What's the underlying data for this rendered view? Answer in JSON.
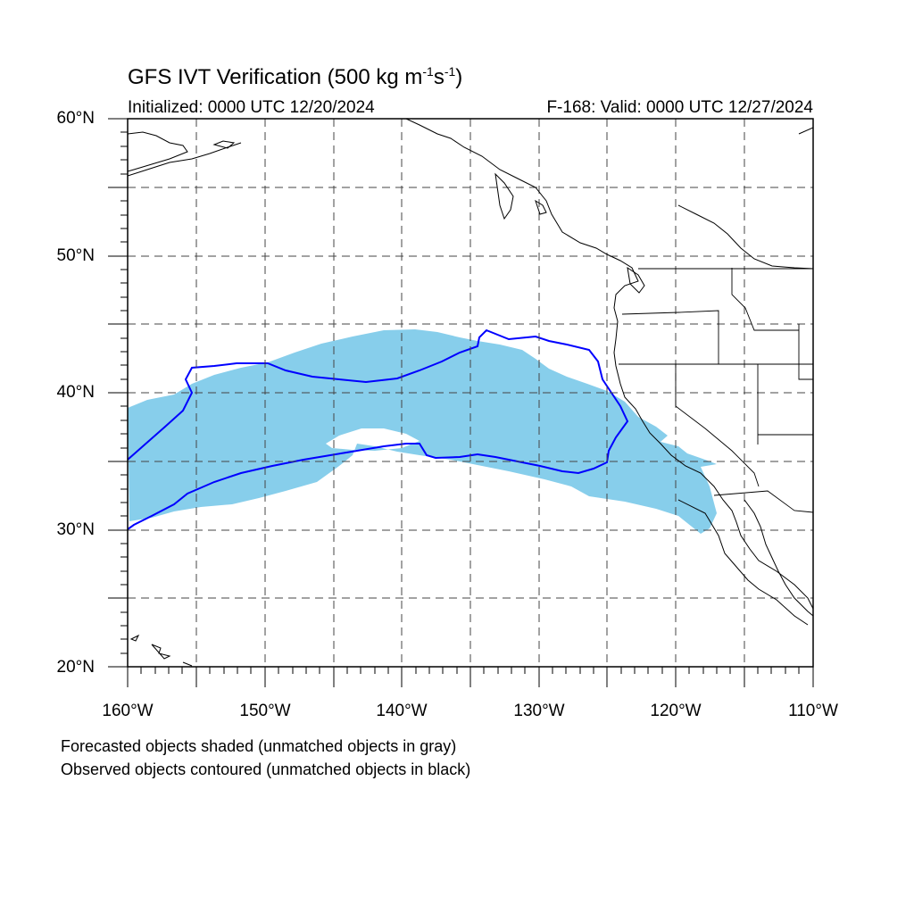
{
  "title": {
    "prefix": "GFS IVT Verification (500 kg m",
    "exp1": "-1",
    "mid": "s",
    "exp2": "-1",
    "suffix": ")"
  },
  "initialized": "Initialized: 0000 UTC 12/20/2024",
  "valid": "F-168: Valid: 0000 UTC 12/27/2024",
  "map": {
    "lon_range": [
      -160,
      -110
    ],
    "lat_range": [
      20,
      60
    ],
    "lat_labels": [
      "20°N",
      "30°N",
      "40°N",
      "50°N",
      "60°N"
    ],
    "lon_labels": [
      "160°W",
      "150°W",
      "140°W",
      "130°W",
      "120°W",
      "110°W"
    ],
    "forecast_color": "#87ceeb",
    "observed_color": "#0000ff"
  },
  "notes": [
    "Forecasted objects shaded (unmatched objects in gray)",
    "Observed objects contoured (unmatched objects in black)"
  ]
}
